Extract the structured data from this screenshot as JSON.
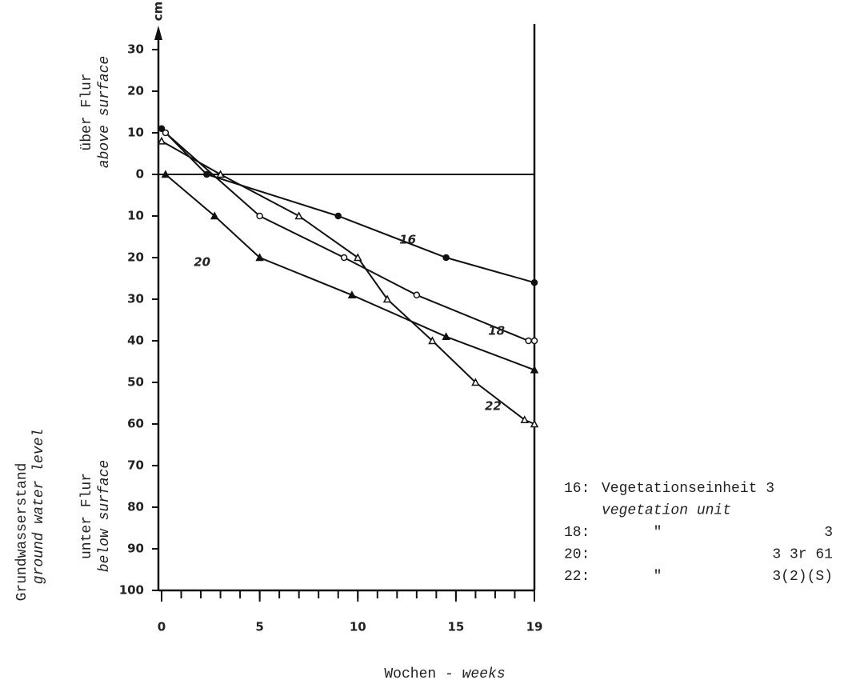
{
  "chart_data": {
    "type": "line",
    "y_unit": "cm",
    "y_labels": {
      "upper": [
        "über Flur",
        "above surface"
      ],
      "lower": [
        "unter Flur",
        "below surface"
      ],
      "outer": [
        "Grundwasserstand",
        "ground water level"
      ]
    },
    "x_label": [
      "Wochen -",
      "weeks"
    ],
    "xlim": [
      0,
      19
    ],
    "xticks": [
      0,
      5,
      10,
      15,
      19
    ],
    "ylim": [
      -100,
      35
    ],
    "yticks": [
      30,
      20,
      10,
      0,
      {
        "value": -10,
        "label": "10"
      },
      {
        "value": -20,
        "label": "20"
      },
      {
        "value": -30,
        "label": "30"
      },
      {
        "value": -40,
        "label": "40"
      },
      {
        "value": -50,
        "label": "50"
      },
      {
        "value": -60,
        "label": "60"
      },
      {
        "value": -70,
        "label": "70"
      },
      {
        "value": -80,
        "label": "80"
      },
      {
        "value": -90,
        "label": "90"
      },
      {
        "value": -100,
        "label": "100"
      }
    ],
    "zero_line": true,
    "series": [
      {
        "name": "16",
        "color": "#111111",
        "marker": "filled-circle",
        "x": [
          0,
          2.3,
          9,
          14.5,
          19
        ],
        "values": [
          11,
          0,
          -10,
          -20,
          -26
        ]
      },
      {
        "name": "18",
        "color": "#111111",
        "marker": "open-circle",
        "x": [
          0.2,
          5,
          9.3,
          13,
          18.7,
          19
        ],
        "values": [
          10,
          -10,
          -20,
          -29,
          -40,
          -40
        ]
      },
      {
        "name": "20",
        "color": "#111111",
        "marker": "filled-triangle",
        "x": [
          0.2,
          2.7,
          5,
          9.7,
          14.5,
          19
        ],
        "values": [
          0,
          -10,
          -20,
          -29,
          -39,
          -47
        ]
      },
      {
        "name": "22",
        "color": "#111111",
        "marker": "open-triangle",
        "x": [
          0,
          3,
          7,
          10,
          11.5,
          13.8,
          16,
          18.5,
          19
        ],
        "values": [
          8,
          0,
          -10,
          -20,
          -30,
          -40,
          -50,
          -59,
          -60
        ]
      }
    ],
    "legend_rows": [
      {
        "key": "16:",
        "text": "Vegetationseinheit 3"
      },
      {
        "text": "vegetation unit"
      },
      {
        "key": "18:",
        "ditto": "\"",
        "text": "3"
      },
      {
        "key": "20:",
        "text": "3 3r 61"
      },
      {
        "key": "22:",
        "ditto": "\"",
        "text": "3(2)(S)"
      }
    ]
  }
}
